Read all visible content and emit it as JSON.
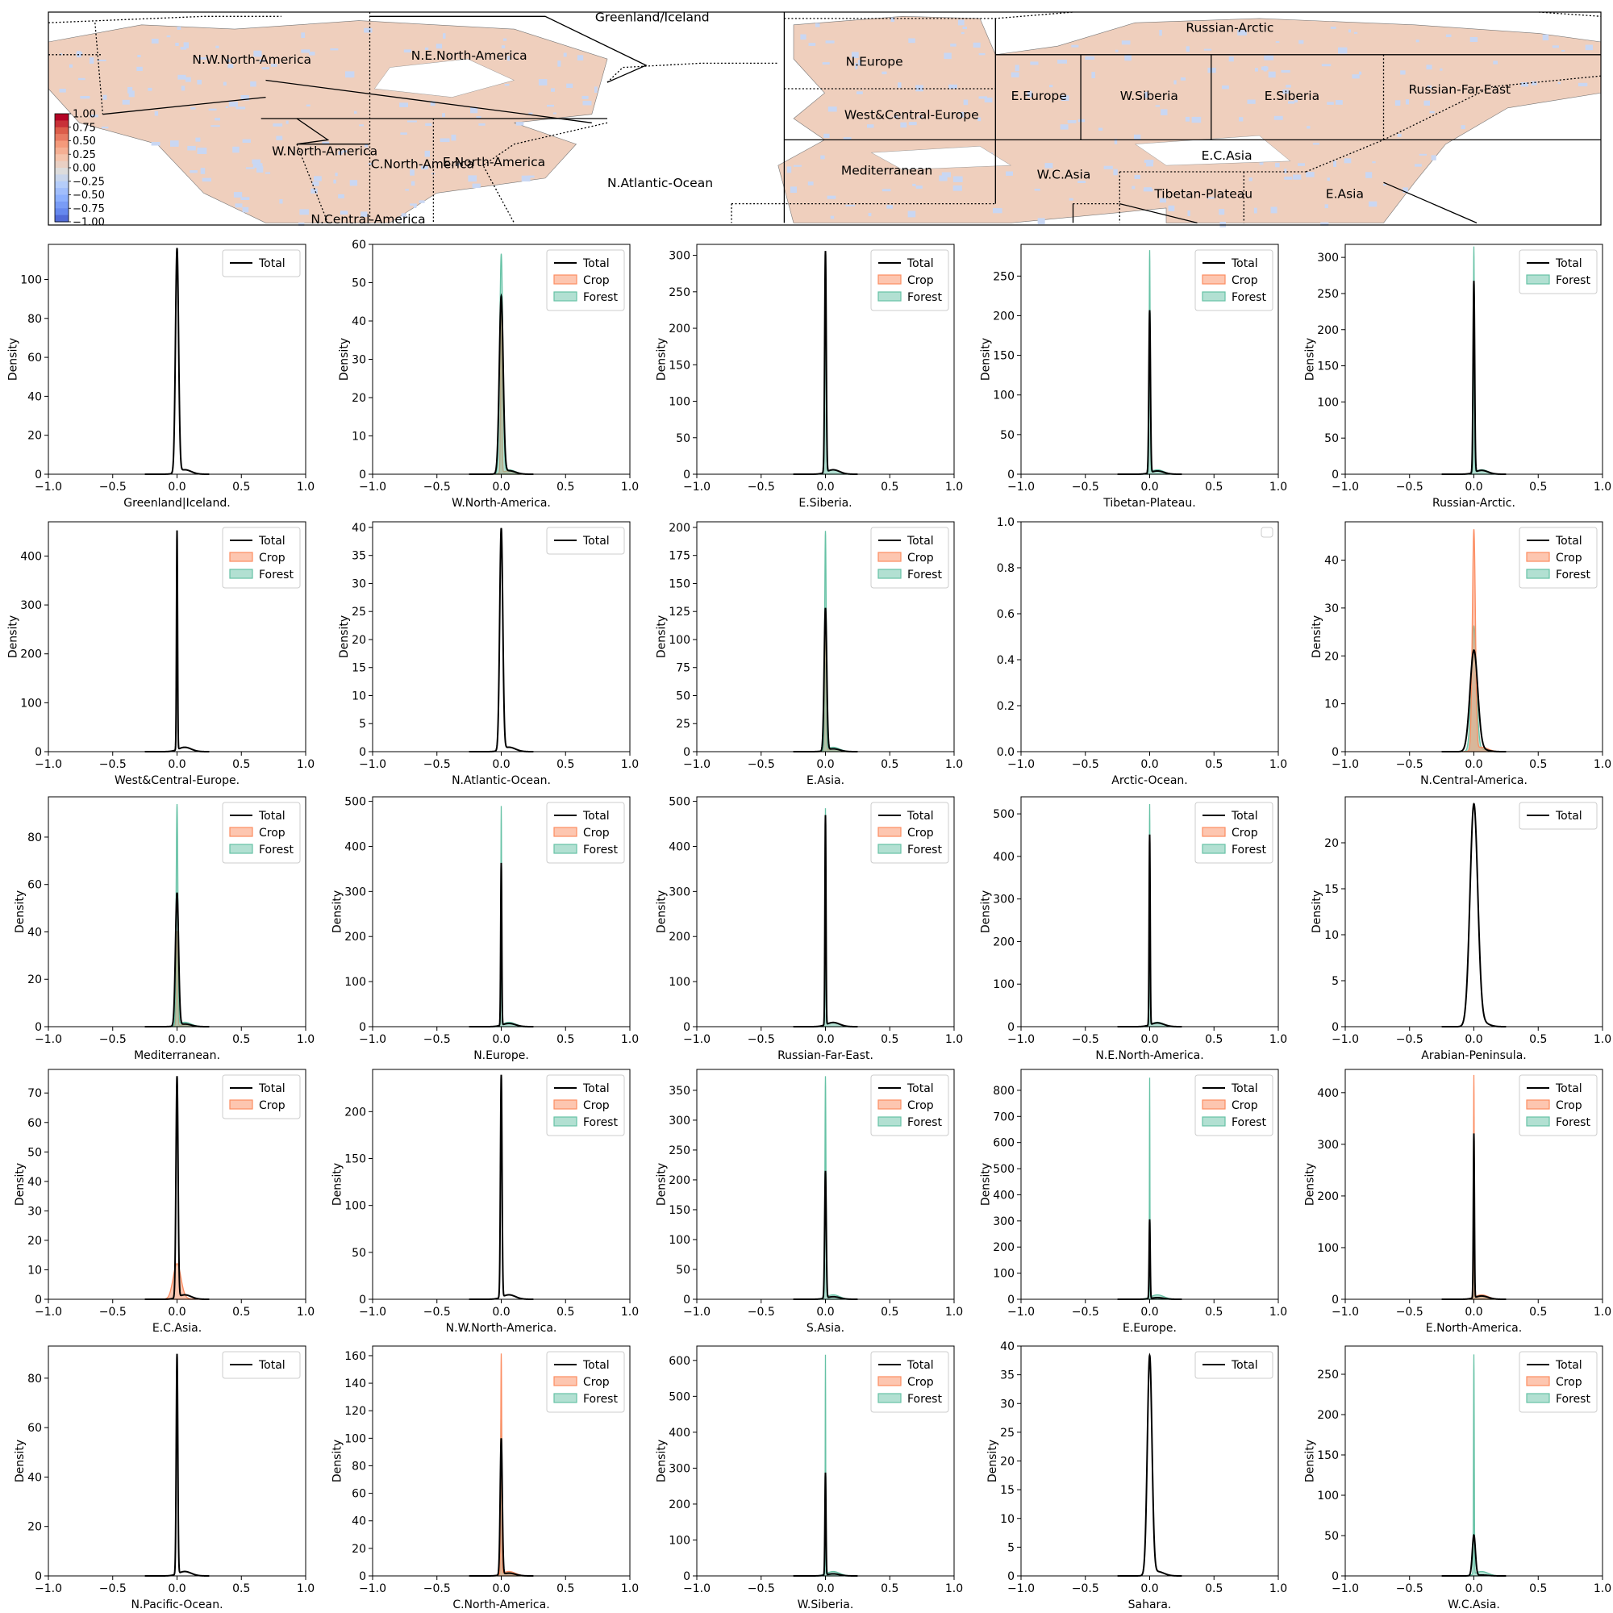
{
  "map": {
    "regions": [
      {
        "name": "Greenland/Iceland"
      },
      {
        "name": "Russian-Arctic"
      },
      {
        "name": "N.W.North-America"
      },
      {
        "name": "N.E.North-America"
      },
      {
        "name": "N.Europe"
      },
      {
        "name": "E.Europe"
      },
      {
        "name": "W.Siberia"
      },
      {
        "name": "E.Siberia"
      },
      {
        "name": "Russian-Far-East"
      },
      {
        "name": "West&Central-Europe"
      },
      {
        "name": "W.North-America"
      },
      {
        "name": "C.North-America"
      },
      {
        "name": "E.North-America"
      },
      {
        "name": "E.C.Asia"
      },
      {
        "name": "Mediterranean"
      },
      {
        "name": "W.C.Asia"
      },
      {
        "name": "N.Atlantic-Ocean"
      },
      {
        "name": "Tibetan-Plateau"
      },
      {
        "name": "E.Asia"
      },
      {
        "name": "N.Central-America"
      }
    ],
    "colorbar": {
      "ticks": [
        "1.00",
        "0.75",
        "0.50",
        "0.25",
        "0.00",
        "−0.25",
        "−0.50",
        "−0.75",
        "−1.00"
      ],
      "colors": [
        "#b40426",
        "#dc5d4a",
        "#f49a7b",
        "#f5c4ac",
        "#dddcdc",
        "#b5cdfa",
        "#8db0fe",
        "#6688ee",
        "#3b4cc0"
      ]
    }
  },
  "colors": {
    "total": "#000000",
    "crop": "#fc8d62",
    "forest": "#66c2a5"
  },
  "chart_data": [
    {
      "type": "line",
      "title": "",
      "xlabel": "Greenland|Iceland.",
      "ylabel": "Density",
      "xlim": [
        -1,
        1
      ],
      "ylim": [
        0,
        118
      ],
      "yticks": [
        0,
        20,
        40,
        60,
        80,
        100
      ],
      "legend": [
        "Total"
      ],
      "legend_position": "top-right",
      "total_peak": 115,
      "total_width": 0.012
    },
    {
      "type": "line",
      "title": "",
      "xlabel": "W.North-America.",
      "ylabel": "Density",
      "xlim": [
        -1,
        1
      ],
      "ylim": [
        0,
        60
      ],
      "yticks": [
        0,
        10,
        20,
        30,
        40,
        50,
        60
      ],
      "legend": [
        "Total",
        "Crop",
        "Forest"
      ],
      "legend_position": "top-right",
      "total_peak": 46,
      "total_width": 0.015,
      "crop_peak": 44,
      "forest_peak": 57,
      "forest_width": 0.012
    },
    {
      "type": "line",
      "title": "",
      "xlabel": "E.Siberia.",
      "ylabel": "Density",
      "xlim": [
        -1,
        1
      ],
      "ylim": [
        0,
        315
      ],
      "yticks": [
        0,
        50,
        100,
        150,
        200,
        250,
        300
      ],
      "legend": [
        "Total",
        "Crop",
        "Forest"
      ],
      "legend_position": "top-right",
      "total_peak": 303,
      "total_width": 0.006,
      "crop_peak": 0,
      "forest_peak": 290,
      "forest_width": 0.005
    },
    {
      "type": "line",
      "title": "",
      "xlabel": "Tibetan-Plateau.",
      "ylabel": "Density",
      "xlim": [
        -1,
        1
      ],
      "ylim": [
        0,
        290
      ],
      "yticks": [
        0,
        50,
        100,
        150,
        200,
        250
      ],
      "legend": [
        "Total",
        "Crop",
        "Forest"
      ],
      "legend_position": "top-right",
      "total_peak": 205,
      "total_width": 0.006,
      "crop_peak": 0,
      "forest_peak": 280,
      "forest_width": 0.004
    },
    {
      "type": "line",
      "title": "",
      "xlabel": "Russian-Arctic.",
      "ylabel": "Density",
      "xlim": [
        -1,
        1
      ],
      "ylim": [
        0,
        318
      ],
      "yticks": [
        0,
        50,
        100,
        150,
        200,
        250,
        300
      ],
      "legend": [
        "Total",
        "Forest"
      ],
      "legend_position": "top-right",
      "total_peak": 265,
      "total_width": 0.006,
      "forest_peak": 312,
      "forest_width": 0.004
    },
    {
      "type": "line",
      "title": "",
      "xlabel": "West&Central-Europe.",
      "ylabel": "Density",
      "xlim": [
        -1,
        1
      ],
      "ylim": [
        0,
        470
      ],
      "yticks": [
        0,
        100,
        200,
        300,
        400
      ],
      "legend": [
        "Total",
        "Crop",
        "Forest"
      ],
      "legend_position": "top-right",
      "total_peak": 448,
      "total_width": 0.004,
      "crop_peak": 0,
      "forest_peak": 0
    },
    {
      "type": "line",
      "title": "",
      "xlabel": "N.Atlantic-Ocean.",
      "ylabel": "Density",
      "xlim": [
        -1,
        1
      ],
      "ylim": [
        0,
        41
      ],
      "yticks": [
        0,
        5,
        10,
        15,
        20,
        25,
        30,
        35,
        40
      ],
      "legend": [
        "Total"
      ],
      "legend_position": "top-right",
      "total_peak": 39.5,
      "total_width": 0.012
    },
    {
      "type": "line",
      "title": "",
      "xlabel": "E.Asia.",
      "ylabel": "Density",
      "xlim": [
        -1,
        1
      ],
      "ylim": [
        0,
        205
      ],
      "yticks": [
        0,
        25,
        50,
        75,
        100,
        125,
        150,
        175,
        200
      ],
      "legend": [
        "Total",
        "Crop",
        "Forest"
      ],
      "legend_position": "top-right",
      "total_peak": 127,
      "total_width": 0.01,
      "crop_peak": 125,
      "forest_peak": 195,
      "forest_width": 0.006
    },
    {
      "type": "line",
      "title": "",
      "xlabel": "Arctic-Ocean.",
      "ylabel": "",
      "xlim": [
        -1,
        1
      ],
      "ylim": [
        0,
        1
      ],
      "yticks": [
        "0.0",
        "0.2",
        "0.4",
        "0.6",
        "0.8",
        "1.0"
      ],
      "legend": [],
      "legend_position": "top-right",
      "total_peak": 0
    },
    {
      "type": "line",
      "title": "",
      "xlabel": "N.Central-America.",
      "ylabel": "Density",
      "xlim": [
        -1,
        1
      ],
      "ylim": [
        0,
        48
      ],
      "yticks": [
        0,
        10,
        20,
        30,
        40
      ],
      "legend": [
        "Total",
        "Crop",
        "Forest"
      ],
      "legend_position": "top-right",
      "total_peak": 21,
      "total_width": 0.03,
      "crop_peak": 46,
      "crop_width": 0.012,
      "forest_peak": 26,
      "forest_width": 0.02
    },
    {
      "type": "line",
      "title": "",
      "xlabel": "Mediterranean.",
      "ylabel": "Density",
      "xlim": [
        -1,
        1
      ],
      "ylim": [
        0,
        97
      ],
      "yticks": [
        0,
        20,
        40,
        60,
        80
      ],
      "legend": [
        "Total",
        "Crop",
        "Forest"
      ],
      "legend_position": "top-right",
      "total_peak": 56,
      "total_width": 0.012,
      "crop_peak": 40,
      "forest_peak": 93,
      "forest_width": 0.007
    },
    {
      "type": "line",
      "title": "",
      "xlabel": "N.Europe.",
      "ylabel": "Density",
      "xlim": [
        -1,
        1
      ],
      "ylim": [
        0,
        510
      ],
      "yticks": [
        0,
        100,
        200,
        300,
        400,
        500
      ],
      "legend": [
        "Total",
        "Crop",
        "Forest"
      ],
      "legend_position": "top-right",
      "total_peak": 360,
      "total_width": 0.004,
      "crop_peak": 0,
      "forest_peak": 485,
      "forest_width": 0.003
    },
    {
      "type": "line",
      "title": "",
      "xlabel": "Russian-Far-East.",
      "ylabel": "Density",
      "xlim": [
        -1,
        1
      ],
      "ylim": [
        0,
        510
      ],
      "yticks": [
        0,
        100,
        200,
        300,
        400,
        500
      ],
      "legend": [
        "Total",
        "Crop",
        "Forest"
      ],
      "legend_position": "top-right",
      "total_peak": 465,
      "total_width": 0.004,
      "crop_peak": 0,
      "forest_peak": 480,
      "forest_width": 0.003
    },
    {
      "type": "line",
      "title": "",
      "xlabel": "N.E.North-America.",
      "ylabel": "Density",
      "xlim": [
        -1,
        1
      ],
      "ylim": [
        0,
        540
      ],
      "yticks": [
        0,
        100,
        200,
        300,
        400,
        500
      ],
      "legend": [
        "Total",
        "Crop",
        "Forest"
      ],
      "legend_position": "top-right",
      "total_peak": 447,
      "total_width": 0.004,
      "crop_peak": 0,
      "forest_peak": 518,
      "forest_width": 0.003
    },
    {
      "type": "line",
      "title": "",
      "xlabel": "Arabian-Peninsula.",
      "ylabel": "Density",
      "xlim": [
        -1,
        1
      ],
      "ylim": [
        0,
        25
      ],
      "yticks": [
        0,
        5,
        10,
        15,
        20
      ],
      "legend": [
        "Total"
      ],
      "legend_position": "top-right",
      "total_peak": 24,
      "total_width": 0.03
    },
    {
      "type": "line",
      "title": "",
      "xlabel": "E.C.Asia.",
      "ylabel": "Density",
      "xlim": [
        -1,
        1
      ],
      "ylim": [
        0,
        78
      ],
      "yticks": [
        0,
        10,
        20,
        30,
        40,
        50,
        60,
        70
      ],
      "legend": [
        "Total",
        "Crop"
      ],
      "legend_position": "top-right",
      "total_peak": 75,
      "total_width": 0.008,
      "crop_peak": 12,
      "crop_width": 0.03
    },
    {
      "type": "line",
      "title": "",
      "xlabel": "N.W.North-America.",
      "ylabel": "Density",
      "xlim": [
        -1,
        1
      ],
      "ylim": [
        0,
        245
      ],
      "yticks": [
        0,
        50,
        100,
        150,
        200
      ],
      "legend": [
        "Total",
        "Crop",
        "Forest"
      ],
      "legend_position": "top-right",
      "total_peak": 237,
      "total_width": 0.006,
      "crop_peak": 0,
      "forest_peak": 0
    },
    {
      "type": "line",
      "title": "",
      "xlabel": "S.Asia.",
      "ylabel": "Density",
      "xlim": [
        -1,
        1
      ],
      "ylim": [
        0,
        385
      ],
      "yticks": [
        0,
        50,
        100,
        150,
        200,
        250,
        300,
        350
      ],
      "legend": [
        "Total",
        "Crop",
        "Forest"
      ],
      "legend_position": "top-right",
      "total_peak": 213,
      "total_width": 0.006,
      "crop_peak": 0,
      "forest_peak": 370,
      "forest_width": 0.004
    },
    {
      "type": "line",
      "title": "",
      "xlabel": "E.Europe.",
      "ylabel": "Density",
      "xlim": [
        -1,
        1
      ],
      "ylim": [
        0,
        880
      ],
      "yticks": [
        0,
        100,
        200,
        300,
        400,
        500,
        600,
        700,
        800
      ],
      "legend": [
        "Total",
        "Crop",
        "Forest"
      ],
      "legend_position": "top-right",
      "total_peak": 303,
      "total_width": 0.004,
      "crop_peak": 0,
      "forest_peak": 840,
      "forest_width": 0.002
    },
    {
      "type": "line",
      "title": "",
      "xlabel": "E.North-America.",
      "ylabel": "Density",
      "xlim": [
        -1,
        1
      ],
      "ylim": [
        0,
        445
      ],
      "yticks": [
        0,
        100,
        200,
        300,
        400
      ],
      "legend": [
        "Total",
        "Crop",
        "Forest"
      ],
      "legend_position": "top-right",
      "total_peak": 318,
      "total_width": 0.004,
      "crop_peak": 430,
      "crop_width": 0.003,
      "forest_peak": 350,
      "forest_width": 0.003
    },
    {
      "type": "line",
      "title": "",
      "xlabel": "N.Pacific-Ocean.",
      "ylabel": "Density",
      "xlim": [
        -1,
        1
      ],
      "ylim": [
        0,
        93
      ],
      "yticks": [
        0,
        20,
        40,
        60,
        80
      ],
      "legend": [
        "Total"
      ],
      "legend_position": "top-right",
      "total_peak": 89,
      "total_width": 0.006
    },
    {
      "type": "line",
      "title": "",
      "xlabel": "C.North-America.",
      "ylabel": "Density",
      "xlim": [
        -1,
        1
      ],
      "ylim": [
        0,
        167
      ],
      "yticks": [
        0,
        20,
        40,
        60,
        80,
        100,
        120,
        140,
        160
      ],
      "legend": [
        "Total",
        "Crop",
        "Forest"
      ],
      "legend_position": "top-right",
      "total_peak": 99,
      "total_width": 0.008,
      "crop_peak": 160,
      "crop_width": 0.004,
      "forest_peak": 126,
      "forest_width": 0.005
    },
    {
      "type": "line",
      "title": "",
      "xlabel": "W.Siberia.",
      "ylabel": "Density",
      "xlim": [
        -1,
        1
      ],
      "ylim": [
        0,
        640
      ],
      "yticks": [
        0,
        100,
        200,
        300,
        400,
        500,
        600
      ],
      "legend": [
        "Total",
        "Crop",
        "Forest"
      ],
      "legend_position": "top-right",
      "total_peak": 285,
      "total_width": 0.004,
      "crop_peak": 0,
      "forest_peak": 610,
      "forest_width": 0.002
    },
    {
      "type": "line",
      "title": "",
      "xlabel": "Sahara.",
      "ylabel": "Density",
      "xlim": [
        -1,
        1
      ],
      "ylim": [
        0,
        40
      ],
      "yticks": [
        0,
        5,
        10,
        15,
        20,
        25,
        30,
        35,
        40
      ],
      "legend": [
        "Total"
      ],
      "legend_position": "top-right",
      "total_peak": 38,
      "total_width": 0.018
    },
    {
      "type": "line",
      "title": "",
      "xlabel": "W.C.Asia.",
      "ylabel": "Density",
      "xlim": [
        -1,
        1
      ],
      "ylim": [
        0,
        285
      ],
      "yticks": [
        0,
        50,
        100,
        150,
        200,
        250
      ],
      "legend": [
        "Total",
        "Crop",
        "Forest"
      ],
      "legend_position": "top-right",
      "total_peak": 50,
      "total_width": 0.012,
      "crop_peak": 0,
      "forest_peak": 272,
      "forest_width": 0.003
    }
  ]
}
